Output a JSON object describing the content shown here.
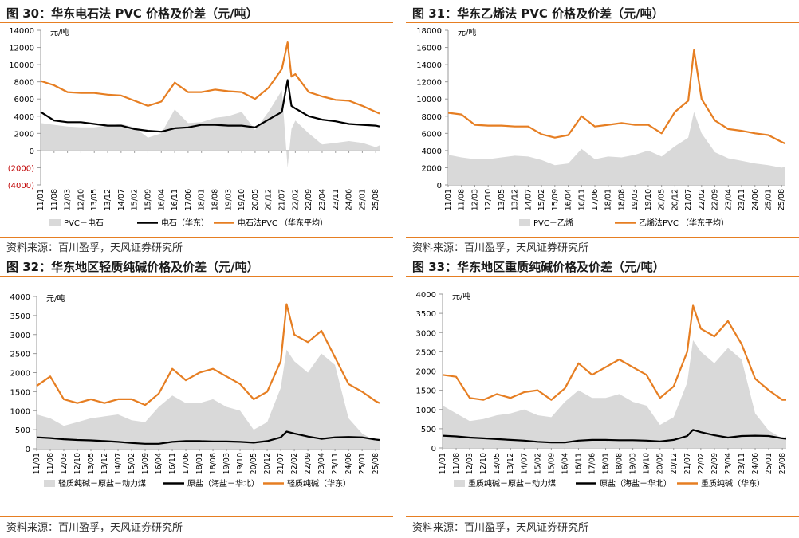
{
  "colors": {
    "area": "#d9d9d9",
    "black": "#000000",
    "orange": "#e67e22",
    "neg": "#c00000",
    "rule": "#e67e22"
  },
  "source_text": "资料来源：百川盈孚，天风证券研究所",
  "chart_data": [
    {
      "type": "area",
      "title": "图 30：华东电石法 PVC 价格及价差（元/吨）",
      "unit": "元/吨",
      "ylim": [
        -4000,
        14000
      ],
      "y_ticks": [
        -4000,
        -2000,
        0,
        2000,
        4000,
        6000,
        8000,
        10000,
        12000,
        14000
      ],
      "y_tick_labels": [
        "(4000)",
        "(2000)",
        "0",
        "2000",
        "4000",
        "6000",
        "8000",
        "10000",
        "12000",
        "14000"
      ],
      "x_tick_labels": [
        "11/01",
        "11/08",
        "12/03",
        "12/10",
        "13/05",
        "13/12",
        "14/07",
        "15/02",
        "15/09",
        "16/04",
        "16/11",
        "17/06",
        "18/01",
        "18/08",
        "19/03",
        "19/10",
        "20/05",
        "20/12",
        "21/07",
        "22/02",
        "22/09",
        "23/04",
        "23/11",
        "24/06",
        "25/01",
        "25/08"
      ],
      "x_start": "2011-01",
      "x_end": "2025-10",
      "grid": false,
      "legend_position": "bottom",
      "series": [
        {
          "name": "PVC－电石",
          "kind": "area",
          "color": "#d9d9d9",
          "dates": [
            "2011-01",
            "2011-08",
            "2012-03",
            "2012-10",
            "2013-05",
            "2013-12",
            "2014-07",
            "2015-02",
            "2015-09",
            "2016-04",
            "2016-11",
            "2017-06",
            "2018-01",
            "2018-08",
            "2019-03",
            "2019-10",
            "2020-05",
            "2020-12",
            "2021-07",
            "2021-10",
            "2021-12",
            "2022-02",
            "2022-09",
            "2023-04",
            "2023-11",
            "2024-06",
            "2025-01",
            "2025-08",
            "2025-10"
          ],
          "values": [
            3200,
            3000,
            2800,
            2700,
            2700,
            2900,
            3100,
            2700,
            1500,
            2000,
            4800,
            3200,
            3300,
            3800,
            4000,
            4500,
            2400,
            4500,
            7000,
            -2000,
            2500,
            3500,
            2000,
            700,
            900,
            1100,
            900,
            400,
            600
          ]
        },
        {
          "name": "电石（华东）",
          "kind": "line",
          "color": "#000000",
          "dates": [
            "2011-01",
            "2011-08",
            "2012-03",
            "2012-10",
            "2013-05",
            "2013-12",
            "2014-07",
            "2015-02",
            "2015-09",
            "2016-04",
            "2016-11",
            "2017-06",
            "2018-01",
            "2018-08",
            "2019-03",
            "2019-10",
            "2020-05",
            "2020-12",
            "2021-07",
            "2021-10",
            "2021-12",
            "2022-02",
            "2022-09",
            "2023-04",
            "2023-11",
            "2024-06",
            "2025-01",
            "2025-08",
            "2025-10"
          ],
          "values": [
            4500,
            3500,
            3300,
            3300,
            3100,
            2900,
            2900,
            2500,
            2300,
            2200,
            2600,
            2700,
            3000,
            3000,
            2900,
            2900,
            2700,
            3600,
            4500,
            8200,
            5200,
            4900,
            4000,
            3600,
            3400,
            3100,
            3000,
            2900,
            2800
          ]
        },
        {
          "name": "电石法PVC （华东平均）",
          "kind": "line",
          "color": "#e67e22",
          "dates": [
            "2011-01",
            "2011-08",
            "2012-03",
            "2012-10",
            "2013-05",
            "2013-12",
            "2014-07",
            "2015-02",
            "2015-09",
            "2016-04",
            "2016-11",
            "2017-06",
            "2018-01",
            "2018-08",
            "2019-03",
            "2019-10",
            "2020-05",
            "2020-12",
            "2021-07",
            "2021-10",
            "2021-12",
            "2022-02",
            "2022-09",
            "2023-04",
            "2023-11",
            "2024-06",
            "2025-01",
            "2025-08",
            "2025-10"
          ],
          "values": [
            8100,
            7600,
            6800,
            6700,
            6700,
            6500,
            6400,
            5800,
            5200,
            5700,
            7900,
            6800,
            6800,
            7100,
            6900,
            6800,
            6000,
            7300,
            9500,
            12600,
            8600,
            8900,
            6800,
            6300,
            5900,
            5800,
            5200,
            4500,
            4300
          ]
        }
      ]
    },
    {
      "type": "area",
      "title": "图 31：华东乙烯法 PVC 价格及价差（元/吨）",
      "unit": "元/吨",
      "ylim": [
        0,
        18000
      ],
      "y_ticks": [
        0,
        2000,
        4000,
        6000,
        8000,
        10000,
        12000,
        14000,
        16000,
        18000
      ],
      "y_tick_labels": [
        "0",
        "2000",
        "4000",
        "6000",
        "8000",
        "10000",
        "12000",
        "14000",
        "16000",
        "18000"
      ],
      "x_tick_labels": [
        "11/01",
        "11/08",
        "12/03",
        "12/10",
        "13/05",
        "13/12",
        "14/07",
        "15/02",
        "15/09",
        "16/04",
        "16/11",
        "17/06",
        "18/01",
        "18/08",
        "19/03",
        "19/10",
        "20/05",
        "20/12",
        "21/07",
        "22/02",
        "22/09",
        "23/04",
        "23/11",
        "24/06",
        "25/01",
        "25/08"
      ],
      "x_start": "2011-01",
      "x_end": "2025-10",
      "grid": false,
      "legend_position": "bottom",
      "series": [
        {
          "name": "PVC－乙烯",
          "kind": "area",
          "color": "#d9d9d9",
          "dates": [
            "2011-01",
            "2011-08",
            "2012-03",
            "2012-10",
            "2013-05",
            "2013-12",
            "2014-07",
            "2015-02",
            "2015-09",
            "2016-04",
            "2016-11",
            "2017-06",
            "2018-01",
            "2018-08",
            "2019-03",
            "2019-10",
            "2020-05",
            "2020-12",
            "2021-07",
            "2021-10",
            "2022-02",
            "2022-09",
            "2023-04",
            "2023-11",
            "2024-06",
            "2025-01",
            "2025-08",
            "2025-10"
          ],
          "values": [
            3500,
            3200,
            3000,
            3000,
            3200,
            3400,
            3300,
            2900,
            2300,
            2500,
            4200,
            3000,
            3300,
            3200,
            3500,
            4000,
            3300,
            4500,
            5500,
            8500,
            6000,
            3800,
            3100,
            2800,
            2500,
            2300,
            2000,
            2100
          ]
        },
        {
          "name": "乙烯法PVC （华东平均）",
          "kind": "line",
          "color": "#e67e22",
          "dates": [
            "2011-01",
            "2011-08",
            "2012-03",
            "2012-10",
            "2013-05",
            "2013-12",
            "2014-07",
            "2015-02",
            "2015-09",
            "2016-04",
            "2016-11",
            "2017-06",
            "2018-01",
            "2018-08",
            "2019-03",
            "2019-10",
            "2020-05",
            "2020-12",
            "2021-07",
            "2021-10",
            "2022-02",
            "2022-09",
            "2023-04",
            "2023-11",
            "2024-06",
            "2025-01",
            "2025-08",
            "2025-10"
          ],
          "values": [
            8400,
            8200,
            7000,
            6900,
            6900,
            6800,
            6800,
            5900,
            5500,
            5800,
            8000,
            6800,
            7000,
            7200,
            7000,
            7000,
            6000,
            8500,
            9800,
            15700,
            10000,
            7500,
            6500,
            6300,
            6000,
            5800,
            5000,
            4800
          ]
        }
      ]
    },
    {
      "type": "area",
      "title": "图 32：华东地区轻质纯碱价格及价差（元/吨）",
      "unit": "元/吨",
      "ylim": [
        0,
        4000
      ],
      "y_ticks": [
        0,
        500,
        1000,
        1500,
        2000,
        2500,
        3000,
        3500,
        4000
      ],
      "y_tick_labels": [
        "0",
        "500",
        "1000",
        "1500",
        "2000",
        "2500",
        "3000",
        "3500",
        "4000"
      ],
      "x_tick_labels": [
        "11/01",
        "11/08",
        "12/03",
        "12/10",
        "13/05",
        "13/12",
        "14/07",
        "15/02",
        "15/09",
        "16/04",
        "16/11",
        "17/06",
        "18/01",
        "18/08",
        "19/03",
        "19/10",
        "20/05",
        "20/12",
        "21/07",
        "22/02",
        "22/09",
        "23/04",
        "23/11",
        "24/06",
        "25/01",
        "25/08"
      ],
      "x_start": "2011-01",
      "x_end": "2025-10",
      "grid": false,
      "legend_position": "bottom",
      "series": [
        {
          "name": "轻质纯碱－原盐－动力煤",
          "kind": "area",
          "color": "#d9d9d9",
          "dates": [
            "2011-01",
            "2011-08",
            "2012-03",
            "2012-10",
            "2013-05",
            "2013-12",
            "2014-07",
            "2015-02",
            "2015-09",
            "2016-04",
            "2016-11",
            "2017-06",
            "2018-01",
            "2018-08",
            "2019-03",
            "2019-10",
            "2020-05",
            "2020-12",
            "2021-07",
            "2021-10",
            "2022-02",
            "2022-09",
            "2023-04",
            "2023-11",
            "2024-06",
            "2025-01",
            "2025-08",
            "2025-10"
          ],
          "values": [
            900,
            800,
            600,
            700,
            800,
            850,
            900,
            750,
            700,
            1100,
            1400,
            1200,
            1200,
            1300,
            1100,
            1000,
            500,
            700,
            1600,
            2600,
            2300,
            2000,
            2500,
            2200,
            800,
            400,
            200,
            250
          ]
        },
        {
          "name": "原盐（海盐－华北）",
          "kind": "line",
          "color": "#000000",
          "dates": [
            "2011-01",
            "2011-08",
            "2012-03",
            "2012-10",
            "2013-05",
            "2013-12",
            "2014-07",
            "2015-02",
            "2015-09",
            "2016-04",
            "2016-11",
            "2017-06",
            "2018-01",
            "2018-08",
            "2019-03",
            "2019-10",
            "2020-05",
            "2020-12",
            "2021-07",
            "2021-10",
            "2022-02",
            "2022-09",
            "2023-04",
            "2023-11",
            "2024-06",
            "2025-01",
            "2025-08",
            "2025-10"
          ],
          "values": [
            300,
            280,
            250,
            230,
            220,
            200,
            180,
            150,
            130,
            130,
            180,
            200,
            200,
            190,
            190,
            180,
            160,
            200,
            300,
            450,
            400,
            320,
            260,
            300,
            310,
            300,
            240,
            230
          ]
        },
        {
          "name": "轻质纯碱（华东）",
          "kind": "line",
          "color": "#e67e22",
          "dates": [
            "2011-01",
            "2011-08",
            "2012-03",
            "2012-10",
            "2013-05",
            "2013-12",
            "2014-07",
            "2015-02",
            "2015-09",
            "2016-04",
            "2016-11",
            "2017-06",
            "2018-01",
            "2018-08",
            "2019-03",
            "2019-10",
            "2020-05",
            "2020-12",
            "2021-07",
            "2021-10",
            "2022-02",
            "2022-09",
            "2023-04",
            "2023-11",
            "2024-06",
            "2025-01",
            "2025-08",
            "2025-10"
          ],
          "values": [
            1650,
            1900,
            1300,
            1200,
            1300,
            1200,
            1300,
            1300,
            1150,
            1450,
            2100,
            1800,
            2000,
            2100,
            1900,
            1700,
            1300,
            1500,
            2300,
            3800,
            3000,
            2800,
            3100,
            2400,
            1700,
            1500,
            1250,
            1200
          ]
        }
      ]
    },
    {
      "type": "area",
      "title": "图 33：华东地区重质纯碱价格及价差（元/吨）",
      "unit": "元/吨",
      "ylim": [
        0,
        4000
      ],
      "y_ticks": [
        0,
        500,
        1000,
        1500,
        2000,
        2500,
        3000,
        3500,
        4000
      ],
      "y_tick_labels": [
        "0",
        "500",
        "1000",
        "1500",
        "2000",
        "2500",
        "3000",
        "3500",
        "4000"
      ],
      "x_tick_labels": [
        "11/01",
        "11/08",
        "12/03",
        "12/10",
        "13/05",
        "13/12",
        "14/07",
        "15/02",
        "15/09",
        "16/04",
        "16/11",
        "17/06",
        "18/01",
        "18/08",
        "19/03",
        "19/10",
        "20/05",
        "20/12",
        "21/07",
        "22/02",
        "22/09",
        "23/04",
        "23/11",
        "24/06",
        "25/01",
        "25/08"
      ],
      "x_start": "2011-01",
      "x_end": "2025-10",
      "grid": false,
      "legend_position": "bottom",
      "series": [
        {
          "name": "重质纯碱－原盐－动力煤",
          "kind": "area",
          "color": "#d9d9d9",
          "dates": [
            "2011-01",
            "2011-08",
            "2012-03",
            "2012-10",
            "2013-05",
            "2013-12",
            "2014-07",
            "2015-02",
            "2015-09",
            "2016-04",
            "2016-11",
            "2017-06",
            "2018-01",
            "2018-08",
            "2019-03",
            "2019-10",
            "2020-05",
            "2020-12",
            "2021-07",
            "2021-10",
            "2022-02",
            "2022-09",
            "2023-04",
            "2023-11",
            "2024-06",
            "2025-01",
            "2025-08",
            "2025-10"
          ],
          "values": [
            1100,
            900,
            700,
            750,
            850,
            900,
            1000,
            850,
            800,
            1200,
            1500,
            1300,
            1300,
            1400,
            1200,
            1100,
            600,
            800,
            1700,
            2800,
            2500,
            2200,
            2600,
            2300,
            900,
            450,
            250,
            300
          ]
        },
        {
          "name": "原盐（海盐－华北）",
          "kind": "line",
          "color": "#000000",
          "dates": [
            "2011-01",
            "2011-08",
            "2012-03",
            "2012-10",
            "2013-05",
            "2013-12",
            "2014-07",
            "2015-02",
            "2015-09",
            "2016-04",
            "2016-11",
            "2017-06",
            "2018-01",
            "2018-08",
            "2019-03",
            "2019-10",
            "2020-05",
            "2020-12",
            "2021-07",
            "2021-10",
            "2022-02",
            "2022-09",
            "2023-04",
            "2023-11",
            "2024-06",
            "2025-01",
            "2025-08",
            "2025-10"
          ],
          "values": [
            320,
            300,
            270,
            250,
            230,
            210,
            190,
            160,
            140,
            140,
            190,
            210,
            210,
            200,
            200,
            190,
            170,
            210,
            310,
            470,
            410,
            330,
            270,
            310,
            320,
            310,
            250,
            240
          ]
        },
        {
          "name": "重质纯碱（华东）",
          "kind": "line",
          "color": "#e67e22",
          "dates": [
            "2011-01",
            "2011-08",
            "2012-03",
            "2012-10",
            "2013-05",
            "2013-12",
            "2014-07",
            "2015-02",
            "2015-09",
            "2016-04",
            "2016-11",
            "2017-06",
            "2018-01",
            "2018-08",
            "2019-03",
            "2019-10",
            "2020-05",
            "2020-12",
            "2021-07",
            "2021-10",
            "2022-02",
            "2022-09",
            "2023-04",
            "2023-11",
            "2024-06",
            "2025-01",
            "2025-08",
            "2025-10"
          ],
          "values": [
            1900,
            1850,
            1300,
            1250,
            1400,
            1300,
            1450,
            1500,
            1250,
            1550,
            2200,
            1900,
            2100,
            2300,
            2100,
            1900,
            1300,
            1600,
            2500,
            3700,
            3100,
            2900,
            3300,
            2700,
            1800,
            1500,
            1250,
            1250
          ]
        }
      ]
    }
  ]
}
